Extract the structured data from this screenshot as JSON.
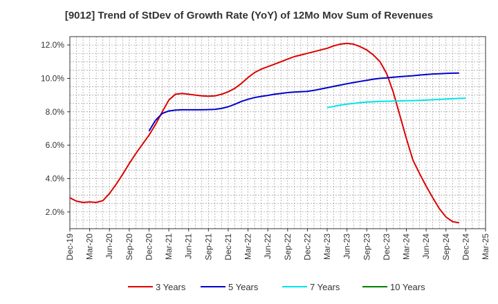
{
  "chart_data": {
    "type": "line",
    "title": "[9012]  Trend of StDev of Growth Rate (YoY) of 12Mo Mov Sum of Revenues",
    "xlabel": "",
    "ylabel": "",
    "ylim": [
      1.0,
      12.5
    ],
    "yticks": [
      2.0,
      4.0,
      6.0,
      8.0,
      10.0,
      12.0
    ],
    "ytick_labels": [
      "2.0%",
      "4.0%",
      "6.0%",
      "8.0%",
      "10.0%",
      "12.0%"
    ],
    "x_tick_labels": [
      "Dec-19",
      "Mar-20",
      "Jun-20",
      "Sep-20",
      "Dec-20",
      "Mar-21",
      "Jun-21",
      "Sep-21",
      "Dec-21",
      "Mar-22",
      "Jun-22",
      "Sep-22",
      "Dec-22",
      "Mar-23",
      "Jun-23",
      "Sep-23",
      "Dec-23",
      "Mar-24",
      "Jun-24",
      "Sep-24",
      "Dec-24",
      "Mar-25"
    ],
    "grid": true,
    "legend_position": "bottom",
    "series": [
      {
        "name": "3 Years",
        "color": "#dd0000",
        "start_index": 0,
        "values": [
          2.85,
          2.65,
          2.57,
          2.6,
          2.57,
          2.68,
          3.1,
          3.65,
          4.25,
          4.9,
          5.5,
          6.05,
          6.6,
          7.25,
          8.0,
          8.7,
          9.05,
          9.1,
          9.05,
          9.0,
          8.95,
          8.93,
          8.95,
          9.05,
          9.2,
          9.4,
          9.7,
          10.05,
          10.35,
          10.55,
          10.7,
          10.85,
          11.0,
          11.15,
          11.3,
          11.4,
          11.5,
          11.6,
          11.7,
          11.8,
          11.95,
          12.05,
          12.1,
          12.05,
          11.9,
          11.7,
          11.4,
          11.0,
          10.3,
          9.2,
          7.8,
          6.4,
          5.1,
          4.3,
          3.55,
          2.85,
          2.2,
          1.7,
          1.42,
          1.35
        ]
      },
      {
        "name": "5 Years",
        "color": "#0000cc",
        "start_index": 12,
        "values": [
          6.85,
          7.5,
          7.9,
          8.05,
          8.1,
          8.12,
          8.12,
          8.12,
          8.12,
          8.13,
          8.15,
          8.2,
          8.3,
          8.45,
          8.62,
          8.75,
          8.85,
          8.92,
          8.98,
          9.05,
          9.1,
          9.15,
          9.18,
          9.2,
          9.22,
          9.28,
          9.36,
          9.44,
          9.52,
          9.6,
          9.68,
          9.75,
          9.82,
          9.88,
          9.95,
          10.0,
          10.03,
          10.07,
          10.1,
          10.13,
          10.16,
          10.2,
          10.23,
          10.26,
          10.28,
          10.3,
          10.31,
          10.32
        ]
      },
      {
        "name": "7 Years",
        "color": "#00e5e5",
        "start_index": 39,
        "values": [
          8.25,
          8.32,
          8.4,
          8.46,
          8.5,
          8.55,
          8.58,
          8.6,
          8.62,
          8.63,
          8.64,
          8.65,
          8.66,
          8.67,
          8.68,
          8.7,
          8.72,
          8.74,
          8.76,
          8.78,
          8.8,
          8.81
        ]
      },
      {
        "name": "10 Years",
        "color": "#008000",
        "start_index": 0,
        "values": []
      }
    ]
  }
}
